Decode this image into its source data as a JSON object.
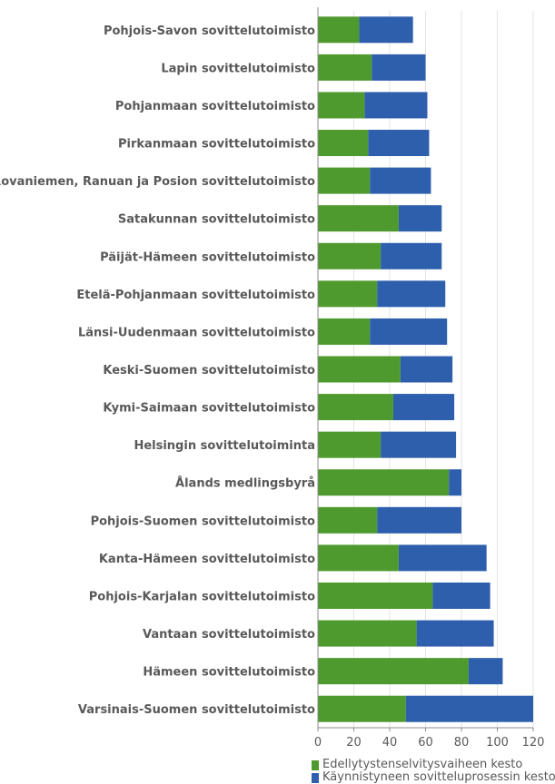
{
  "chart_data": {
    "type": "bar",
    "orientation": "horizontal",
    "stacked": true,
    "categories": [
      "Pohjois-Savon sovittelutoimisto",
      "Lapin sovittelutoimisto",
      "Pohjanmaan sovittelutoimisto",
      "Pirkanmaan sovittelutoimisto",
      "Rovaniemen, Ranuan ja Posion sovittelutoimisto",
      "Satakunnan sovittelutoimisto",
      "Päijät-Hämeen sovittelutoimisto",
      "Etelä-Pohjanmaan sovittelutoimisto",
      "Länsi-Uudenmaan sovittelutoimisto",
      "Keski-Suomen sovittelutoimisto",
      "Kymi-Saimaan sovittelutoimisto",
      "Helsingin sovittelutoiminta",
      "Ålands medlingsbyrå",
      "Pohjois-Suomen sovittelutoimisto",
      "Kanta-Hämeen sovittelutoimisto",
      "Pohjois-Karjalan sovittelutoimisto",
      "Vantaan sovittelutoimisto",
      "Hämeen sovittelutoimisto",
      "Varsinais-Suomen sovittelutoimisto"
    ],
    "series": [
      {
        "name": "Edellytystenselvitysvaiheen kesto",
        "color": "#4f9a2e",
        "values": [
          23,
          30,
          26,
          28,
          29,
          45,
          35,
          33,
          29,
          46,
          42,
          35,
          73,
          33,
          45,
          64,
          55,
          84,
          49
        ]
      },
      {
        "name": "Käynnistyneen sovitteluprosessin kesto",
        "color": "#2e5fac",
        "values": [
          30,
          30,
          35,
          34,
          34,
          24,
          34,
          38,
          43,
          29,
          34,
          42,
          7,
          47,
          49,
          32,
          43,
          19,
          71
        ]
      }
    ],
    "xlim": [
      0,
      120
    ],
    "xticks": [
      0,
      20,
      40,
      60,
      80,
      100,
      120
    ],
    "xlabel": "",
    "ylabel": "",
    "title": "",
    "grid": true,
    "legend_position": "bottom"
  }
}
